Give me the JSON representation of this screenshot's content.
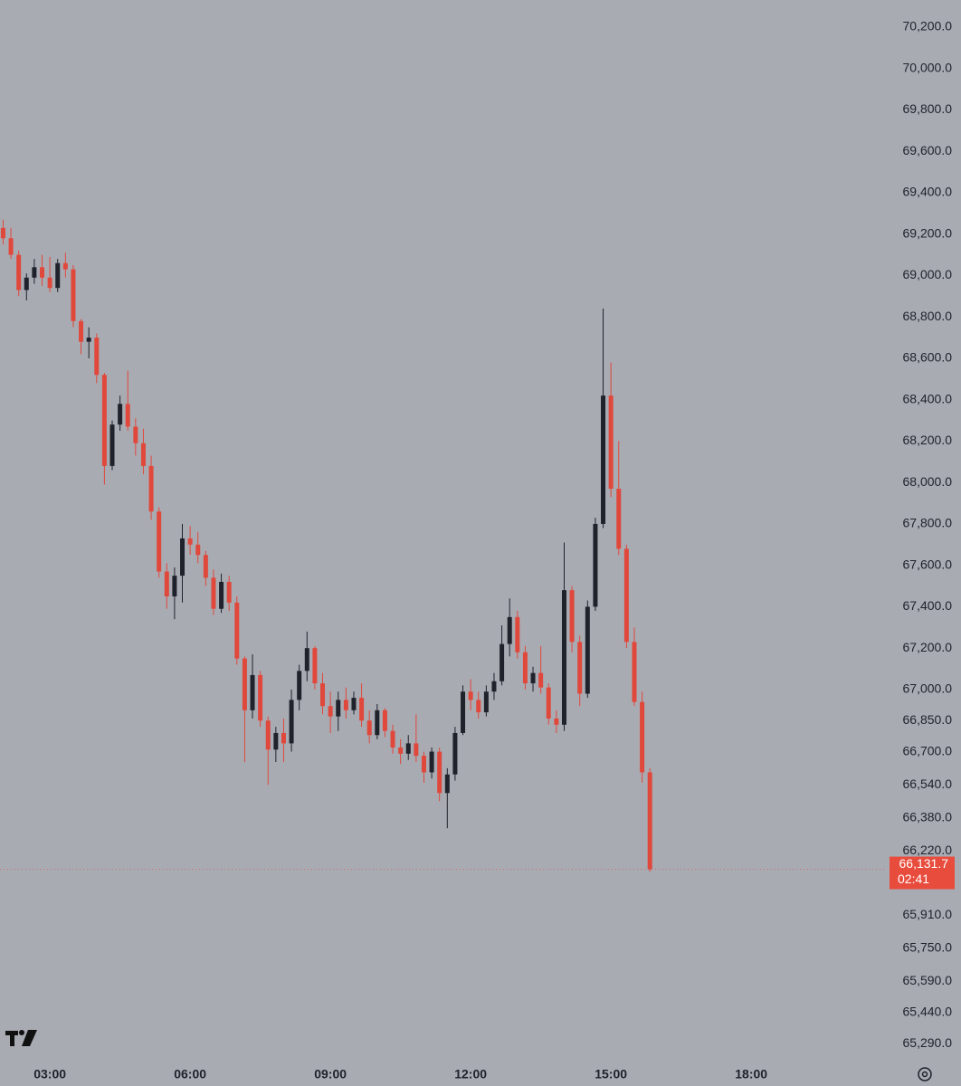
{
  "chart_data": {
    "type": "candlestick",
    "x": [
      "02:00",
      "02:10",
      "02:20",
      "02:30",
      "02:40",
      "02:50",
      "03:00",
      "03:10",
      "03:20",
      "03:30",
      "03:40",
      "03:50",
      "04:00",
      "04:10",
      "04:20",
      "04:30",
      "04:40",
      "04:50",
      "05:00",
      "05:10",
      "05:20",
      "05:30",
      "05:40",
      "05:50",
      "06:00",
      "06:10",
      "06:20",
      "06:30",
      "06:40",
      "06:50",
      "07:00",
      "07:10",
      "07:20",
      "07:30",
      "07:40",
      "07:50",
      "08:00",
      "08:10",
      "08:20",
      "08:30",
      "08:40",
      "08:50",
      "09:00",
      "09:10",
      "09:20",
      "09:30",
      "09:40",
      "09:50",
      "10:00",
      "10:10",
      "10:20",
      "10:30",
      "10:40",
      "10:50",
      "11:00",
      "11:10",
      "11:20",
      "11:30",
      "11:40",
      "11:50",
      "12:00",
      "12:10",
      "12:20",
      "12:30",
      "12:40",
      "12:50",
      "13:00",
      "13:10",
      "13:20",
      "13:30",
      "13:40",
      "13:50",
      "14:00",
      "14:10",
      "14:20",
      "14:30",
      "14:40",
      "14:50",
      "15:00",
      "15:10",
      "15:20",
      "15:30",
      "15:40",
      "15:50"
    ],
    "open": [
      69230,
      69180,
      69100,
      68930,
      68990,
      69040,
      68990,
      68940,
      69060,
      69030,
      68780,
      68680,
      68700,
      68520,
      68080,
      68280,
      68380,
      68270,
      68190,
      68080,
      67860,
      67570,
      67450,
      67550,
      67730,
      67700,
      67650,
      67540,
      67390,
      67520,
      67420,
      67150,
      66900,
      67070,
      66850,
      66710,
      66790,
      66740,
      66950,
      67090,
      67200,
      67030,
      66920,
      66870,
      66950,
      66900,
      66960,
      66850,
      66780,
      66900,
      66800,
      66720,
      66690,
      66740,
      66680,
      66600,
      66700,
      66500,
      66590,
      66790,
      66990,
      66950,
      66890,
      66990,
      67040,
      67220,
      67350,
      67180,
      67030,
      67080,
      67010,
      66860,
      66830,
      67480,
      67230,
      66980,
      67400,
      67800,
      68420,
      67970,
      67680,
      67230,
      66940,
      66600
    ],
    "high": [
      69270,
      69230,
      69120,
      69010,
      69080,
      69100,
      69090,
      69080,
      69110,
      69050,
      68790,
      68750,
      68720,
      68530,
      68300,
      68420,
      68540,
      68310,
      68260,
      68130,
      67880,
      67610,
      67590,
      67800,
      67790,
      67760,
      67670,
      67580,
      67560,
      67550,
      67450,
      67160,
      67170,
      67090,
      66870,
      66820,
      66860,
      67000,
      67120,
      67280,
      67210,
      67080,
      66990,
      66990,
      67010,
      66990,
      67030,
      66900,
      66930,
      66910,
      66830,
      66760,
      66780,
      66880,
      66700,
      66720,
      66720,
      66620,
      66820,
      67020,
      67050,
      66990,
      67020,
      67080,
      67310,
      67440,
      67380,
      67210,
      67110,
      67210,
      67030,
      66900,
      67710,
      67500,
      67260,
      67430,
      67830,
      68840,
      68580,
      68200,
      67700,
      67300,
      66990,
      66620
    ],
    "low": [
      69150,
      69080,
      68900,
      68880,
      68960,
      68950,
      68920,
      68920,
      68990,
      68750,
      68620,
      68600,
      68480,
      67990,
      68060,
      68250,
      68250,
      68130,
      68040,
      67820,
      67540,
      67390,
      67340,
      67420,
      67650,
      67610,
      67500,
      67360,
      67370,
      67380,
      67120,
      66650,
      66860,
      66820,
      66540,
      66650,
      66650,
      66700,
      66900,
      67040,
      67000,
      66880,
      66790,
      66800,
      66860,
      66880,
      66820,
      66740,
      66760,
      66770,
      66690,
      66640,
      66660,
      66650,
      66550,
      66570,
      66460,
      66330,
      66560,
      66780,
      66900,
      66860,
      66870,
      66950,
      67020,
      67160,
      67150,
      67000,
      66990,
      66980,
      66830,
      66790,
      66800,
      67180,
      66920,
      66960,
      67380,
      67780,
      67930,
      67650,
      67200,
      66920,
      66550,
      66120
    ],
    "close": [
      69180,
      69100,
      68930,
      68990,
      69040,
      68990,
      68940,
      69060,
      69030,
      68780,
      68680,
      68700,
      68520,
      68080,
      68280,
      68380,
      68270,
      68190,
      68080,
      67860,
      67570,
      67450,
      67550,
      67730,
      67700,
      67650,
      67540,
      67390,
      67520,
      67420,
      67150,
      66900,
      67070,
      66850,
      66710,
      66790,
      66740,
      66950,
      67090,
      67200,
      67030,
      66920,
      66870,
      66950,
      66900,
      66960,
      66850,
      66780,
      66900,
      66800,
      66720,
      66690,
      66740,
      66680,
      66600,
      66700,
      66500,
      66590,
      66790,
      66990,
      66950,
      66890,
      66990,
      67040,
      67220,
      67350,
      67180,
      67030,
      67080,
      67010,
      66860,
      66830,
      67480,
      67230,
      66980,
      67400,
      67800,
      68420,
      67970,
      67680,
      67230,
      66940,
      66600,
      66131.7
    ],
    "up_color": "#1f222b",
    "down_color": "#e0483b",
    "xlim": [
      "01:56",
      "20:54"
    ],
    "xticks": [
      "03:00",
      "06:00",
      "09:00",
      "12:00",
      "15:00",
      "18:00"
    ],
    "ylim": [
      65216,
      70331
    ],
    "yticks": [
      {
        "value": 70200,
        "label": "70,200.0"
      },
      {
        "value": 70000,
        "label": "70,000.0"
      },
      {
        "value": 69800,
        "label": "69,800.0"
      },
      {
        "value": 69600,
        "label": "69,600.0"
      },
      {
        "value": 69400,
        "label": "69,400.0"
      },
      {
        "value": 69200,
        "label": "69,200.0"
      },
      {
        "value": 69000,
        "label": "69,000.0"
      },
      {
        "value": 68800,
        "label": "68,800.0"
      },
      {
        "value": 68600,
        "label": "68,600.0"
      },
      {
        "value": 68400,
        "label": "68,400.0"
      },
      {
        "value": 68200,
        "label": "68,200.0"
      },
      {
        "value": 68000,
        "label": "68,000.0"
      },
      {
        "value": 67800,
        "label": "67,800.0"
      },
      {
        "value": 67600,
        "label": "67,600.0"
      },
      {
        "value": 67400,
        "label": "67,400.0"
      },
      {
        "value": 67200,
        "label": "67,200.0"
      },
      {
        "value": 67000,
        "label": "67,000.0"
      },
      {
        "value": 66850,
        "label": "66,850.0"
      },
      {
        "value": 66700,
        "label": "66,700.0"
      },
      {
        "value": 66540,
        "label": "66,540.0"
      },
      {
        "value": 66380,
        "label": "66,380.0"
      },
      {
        "value": 66220,
        "label": "66,220.0"
      },
      {
        "value": 65910,
        "label": "65,910.0"
      },
      {
        "value": 65750,
        "label": "65,750.0"
      },
      {
        "value": 65590,
        "label": "65,590.0"
      },
      {
        "value": 65440,
        "label": "65,440.0"
      },
      {
        "value": 65290,
        "label": "65,290.0"
      }
    ],
    "last_price": {
      "value": 66131.7,
      "label": "66,131.7"
    },
    "countdown": "02:41",
    "grid": false
  }
}
